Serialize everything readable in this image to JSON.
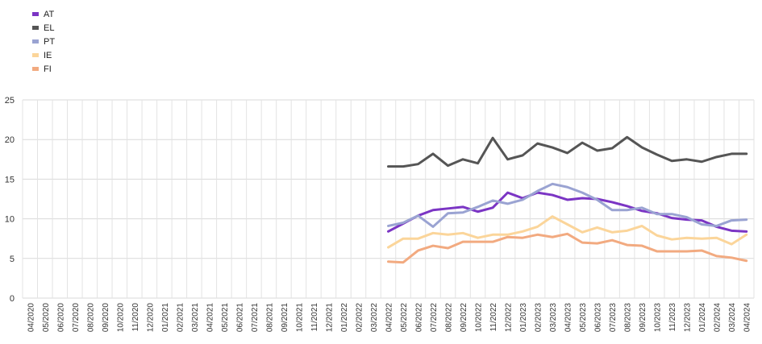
{
  "chart_data": {
    "type": "line",
    "title": "",
    "xlabel": "",
    "ylabel": "",
    "ylim": [
      0,
      25
    ],
    "yticks": [
      0,
      5,
      10,
      15,
      20,
      25
    ],
    "grid": true,
    "legend_position": "top-left",
    "categories": [
      "04/2020",
      "05/2020",
      "06/2020",
      "07/2020",
      "08/2020",
      "09/2020",
      "10/2020",
      "11/2020",
      "12/2020",
      "01/2021",
      "02/2021",
      "03/2021",
      "04/2021",
      "05/2021",
      "06/2021",
      "07/2021",
      "08/2021",
      "09/2021",
      "10/2021",
      "11/2021",
      "12/2021",
      "01/2022",
      "02/2022",
      "03/2022",
      "04/2022",
      "05/2022",
      "06/2022",
      "07/2022",
      "08/2022",
      "09/2022",
      "10/2022",
      "11/2022",
      "12/2022",
      "01/2023",
      "02/2023",
      "03/2023",
      "04/2023",
      "05/2023",
      "06/2023",
      "07/2023",
      "08/2023",
      "09/2023",
      "10/2023",
      "11/2023",
      "12/2023",
      "01/2024",
      "02/2024",
      "03/2024",
      "04/2024"
    ],
    "series": [
      {
        "name": "AT",
        "color": "#7b35c4",
        "values": [
          null,
          null,
          null,
          null,
          null,
          null,
          null,
          null,
          null,
          null,
          null,
          null,
          null,
          null,
          null,
          null,
          null,
          null,
          null,
          null,
          null,
          null,
          null,
          null,
          8.4,
          9.4,
          10.4,
          11.1,
          11.3,
          11.5,
          10.9,
          11.4,
          13.3,
          12.6,
          13.3,
          13.0,
          12.4,
          12.6,
          12.5,
          12.1,
          11.6,
          11.0,
          10.7,
          10.1,
          9.9,
          9.8,
          9.0,
          8.5,
          8.4
        ]
      },
      {
        "name": "EL",
        "color": "#555555",
        "values": [
          null,
          null,
          null,
          null,
          null,
          null,
          null,
          null,
          null,
          null,
          null,
          null,
          null,
          null,
          null,
          null,
          null,
          null,
          null,
          null,
          null,
          null,
          null,
          null,
          16.6,
          16.6,
          16.9,
          18.2,
          16.7,
          17.5,
          17.0,
          20.2,
          17.5,
          18.0,
          19.5,
          19.0,
          18.3,
          19.6,
          18.6,
          18.9,
          20.3,
          19.0,
          18.1,
          17.3,
          17.5,
          17.2,
          17.8,
          18.2,
          18.2
        ]
      },
      {
        "name": "PT",
        "color": "#9aa3d2",
        "values": [
          null,
          null,
          null,
          null,
          null,
          null,
          null,
          null,
          null,
          null,
          null,
          null,
          null,
          null,
          null,
          null,
          null,
          null,
          null,
          null,
          null,
          null,
          null,
          null,
          9.1,
          9.5,
          10.4,
          9.0,
          10.7,
          10.8,
          11.5,
          12.3,
          11.9,
          12.4,
          13.5,
          14.4,
          14.0,
          13.3,
          12.4,
          11.1,
          11.1,
          11.4,
          10.6,
          10.6,
          10.2,
          9.3,
          9.1,
          9.8,
          9.9
        ]
      },
      {
        "name": "IE",
        "color": "#fbd59a",
        "values": [
          null,
          null,
          null,
          null,
          null,
          null,
          null,
          null,
          null,
          null,
          null,
          null,
          null,
          null,
          null,
          null,
          null,
          null,
          null,
          null,
          null,
          null,
          null,
          null,
          6.4,
          7.5,
          7.5,
          8.2,
          8.0,
          8.2,
          7.6,
          8.0,
          8.0,
          8.4,
          9.0,
          10.3,
          9.3,
          8.3,
          8.9,
          8.3,
          8.5,
          9.1,
          7.9,
          7.4,
          7.6,
          7.5,
          7.6,
          6.8,
          8.0
        ]
      },
      {
        "name": "FI",
        "color": "#f2aa80",
        "values": [
          null,
          null,
          null,
          null,
          null,
          null,
          null,
          null,
          null,
          null,
          null,
          null,
          null,
          null,
          null,
          null,
          null,
          null,
          null,
          null,
          null,
          null,
          null,
          null,
          4.6,
          4.5,
          6.0,
          6.6,
          6.3,
          7.1,
          7.1,
          7.1,
          7.7,
          7.6,
          8.0,
          7.7,
          8.1,
          7.0,
          6.9,
          7.3,
          6.7,
          6.6,
          5.9,
          5.9,
          5.9,
          6.0,
          5.3,
          5.1,
          4.7
        ]
      }
    ]
  }
}
